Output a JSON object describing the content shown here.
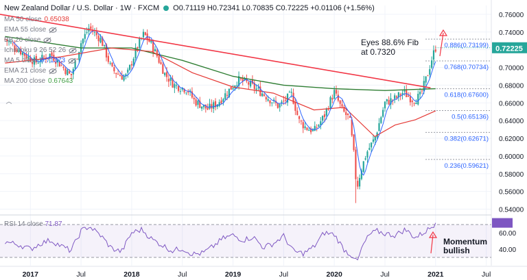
{
  "header": {
    "symbol": "New Zealand Dollar / U.S. Dollar · 1W · FXCM",
    "ohlc": "O0.71119 H0.72341 L0.70835 C0.72225 +0.01106 (+1.56%)"
  },
  "indicators": [
    {
      "label": "MA 50 close",
      "value": "0.65038",
      "color": "#e53935",
      "eye": false
    },
    {
      "label": "EMA 55 close",
      "value": "",
      "color": "#787b86",
      "eye": true
    },
    {
      "label": "BB 20 close",
      "value": "",
      "color": "#787b86",
      "eye": true
    },
    {
      "label": "Ichimoku 9 26 52 26",
      "value": "",
      "color": "#787b86",
      "eye": true
    },
    {
      "label": "MA 5 close",
      "value": "0.71373",
      "color": "#2962ff",
      "eye": true
    },
    {
      "label": "EMA 21 close",
      "value": "",
      "color": "#787b86",
      "eye": true
    },
    {
      "label": "MA 200 close",
      "value": "0.67643",
      "color": "#43a047",
      "eye": false
    }
  ],
  "rsi": {
    "label": "RSI 14 close",
    "value": "71.87"
  },
  "annotations": {
    "fib_note_line1": "Eyes 88.6% Fib",
    "fib_note_line2": "at 0.7320",
    "momentum_line1": "Momentum",
    "momentum_line2": "bullish"
  },
  "colors": {
    "trendline": "#f23645",
    "ma200": "#2e7d32",
    "ma50": "#e53935",
    "ma5": "#2962ff",
    "up": "#26a69a",
    "down": "#ef5350",
    "rsi": "#7e57c2",
    "price_tag": "#26a69a"
  },
  "chart_data": {
    "type": "candlestick",
    "price_axis": {
      "ticks": [
        "0.76000",
        "0.74000",
        "0.72000",
        "0.70000",
        "0.68000",
        "0.66000",
        "0.64000",
        "0.62000",
        "0.60000",
        "0.58000",
        "0.56000",
        "0.54000"
      ],
      "ylim": [
        0.535,
        0.77
      ]
    },
    "time_axis": {
      "ticks": [
        "2017",
        "Jul",
        "2018",
        "Jul",
        "2019",
        "Jul",
        "2020",
        "Jul",
        "2021",
        "Jul"
      ]
    },
    "last_price": "0.72225",
    "fib_levels": [
      {
        "label": "0.886(0.73199)",
        "price": 0.73199
      },
      {
        "label": "0.768(0.70734)",
        "price": 0.70734
      },
      {
        "label": "0.618(0.67600)",
        "price": 0.676
      },
      {
        "label": "0.5(0.65136)",
        "price": 0.65136
      },
      {
        "label": "0.382(0.62671)",
        "price": 0.62671
      },
      {
        "label": "0.236(0.59621)",
        "price": 0.59621
      }
    ],
    "trendline": {
      "from": {
        "date": "2016.7",
        "price": 0.76
      },
      "to": {
        "date": "2020.95",
        "price": 0.677
      }
    },
    "close_path": [
      [
        2016.75,
        0.732
      ],
      [
        2016.95,
        0.714
      ],
      [
        2017.05,
        0.706
      ],
      [
        2017.2,
        0.715
      ],
      [
        2017.3,
        0.703
      ],
      [
        2017.4,
        0.69
      ],
      [
        2017.5,
        0.728
      ],
      [
        2017.58,
        0.745
      ],
      [
        2017.7,
        0.731
      ],
      [
        2017.8,
        0.698
      ],
      [
        2017.9,
        0.69
      ],
      [
        2017.95,
        0.69
      ],
      [
        2018.05,
        0.722
      ],
      [
        2018.12,
        0.738
      ],
      [
        2018.2,
        0.725
      ],
      [
        2018.25,
        0.713
      ],
      [
        2018.33,
        0.692
      ],
      [
        2018.42,
        0.68
      ],
      [
        2018.55,
        0.675
      ],
      [
        2018.62,
        0.662
      ],
      [
        2018.75,
        0.653
      ],
      [
        2018.85,
        0.66
      ],
      [
        2018.95,
        0.673
      ],
      [
        2019.05,
        0.686
      ],
      [
        2019.15,
        0.682
      ],
      [
        2019.3,
        0.67
      ],
      [
        2019.45,
        0.656
      ],
      [
        2019.58,
        0.67
      ],
      [
        2019.65,
        0.64
      ],
      [
        2019.72,
        0.632
      ],
      [
        2019.8,
        0.628
      ],
      [
        2019.9,
        0.645
      ],
      [
        2019.95,
        0.66
      ],
      [
        2020.0,
        0.672
      ],
      [
        2020.08,
        0.651
      ],
      [
        2020.15,
        0.642
      ],
      [
        2020.2,
        0.595
      ],
      [
        2020.22,
        0.562
      ],
      [
        2020.26,
        0.583
      ],
      [
        2020.32,
        0.604
      ],
      [
        2020.4,
        0.62
      ],
      [
        2020.5,
        0.66
      ],
      [
        2020.6,
        0.665
      ],
      [
        2020.68,
        0.672
      ],
      [
        2020.78,
        0.663
      ],
      [
        2020.85,
        0.668
      ],
      [
        2020.92,
        0.692
      ],
      [
        2020.97,
        0.713
      ],
      [
        2021.0,
        0.722
      ]
    ],
    "ma200_path": [
      [
        2016.75,
        0.735
      ],
      [
        2017.5,
        0.722
      ],
      [
        2018.0,
        0.722
      ],
      [
        2018.5,
        0.708
      ],
      [
        2019.0,
        0.69
      ],
      [
        2019.5,
        0.68
      ],
      [
        2020.0,
        0.676
      ],
      [
        2020.5,
        0.674
      ],
      [
        2021.0,
        0.676
      ]
    ],
    "ma50_path": [
      [
        2016.75,
        0.705
      ],
      [
        2017.3,
        0.712
      ],
      [
        2017.8,
        0.722
      ],
      [
        2018.2,
        0.718
      ],
      [
        2018.6,
        0.694
      ],
      [
        2019.0,
        0.678
      ],
      [
        2019.4,
        0.671
      ],
      [
        2019.8,
        0.652
      ],
      [
        2020.1,
        0.655
      ],
      [
        2020.4,
        0.622
      ],
      [
        2020.6,
        0.635
      ],
      [
        2020.8,
        0.641
      ],
      [
        2021.0,
        0.651
      ]
    ],
    "rsi_axis": {
      "ticks": [
        "60.00",
        "40.00"
      ],
      "ylim": [
        20,
        80
      ],
      "bands": [
        70,
        30
      ]
    },
    "rsi_path": [
      [
        2016.75,
        49
      ],
      [
        2016.9,
        45
      ],
      [
        2017.0,
        40
      ],
      [
        2017.1,
        47
      ],
      [
        2017.2,
        51
      ],
      [
        2017.3,
        44
      ],
      [
        2017.4,
        38
      ],
      [
        2017.5,
        62
      ],
      [
        2017.58,
        68
      ],
      [
        2017.7,
        56
      ],
      [
        2017.8,
        41
      ],
      [
        2017.9,
        37
      ],
      [
        2018.0,
        60
      ],
      [
        2018.1,
        64
      ],
      [
        2018.2,
        52
      ],
      [
        2018.3,
        45
      ],
      [
        2018.4,
        38
      ],
      [
        2018.5,
        41
      ],
      [
        2018.6,
        34
      ],
      [
        2018.7,
        35
      ],
      [
        2018.8,
        43
      ],
      [
        2018.9,
        53
      ],
      [
        2019.0,
        57
      ],
      [
        2019.1,
        51
      ],
      [
        2019.2,
        55
      ],
      [
        2019.3,
        42
      ],
      [
        2019.4,
        47
      ],
      [
        2019.5,
        56
      ],
      [
        2019.6,
        37
      ],
      [
        2019.7,
        35
      ],
      [
        2019.8,
        43
      ],
      [
        2019.9,
        60
      ],
      [
        2020.0,
        58
      ],
      [
        2020.1,
        39
      ],
      [
        2020.2,
        30
      ],
      [
        2020.22,
        22
      ],
      [
        2020.28,
        44
      ],
      [
        2020.35,
        58
      ],
      [
        2020.42,
        62
      ],
      [
        2020.5,
        59
      ],
      [
        2020.6,
        57
      ],
      [
        2020.7,
        64
      ],
      [
        2020.8,
        54
      ],
      [
        2020.88,
        60
      ],
      [
        2020.95,
        66
      ],
      [
        2021.0,
        72
      ]
    ]
  }
}
